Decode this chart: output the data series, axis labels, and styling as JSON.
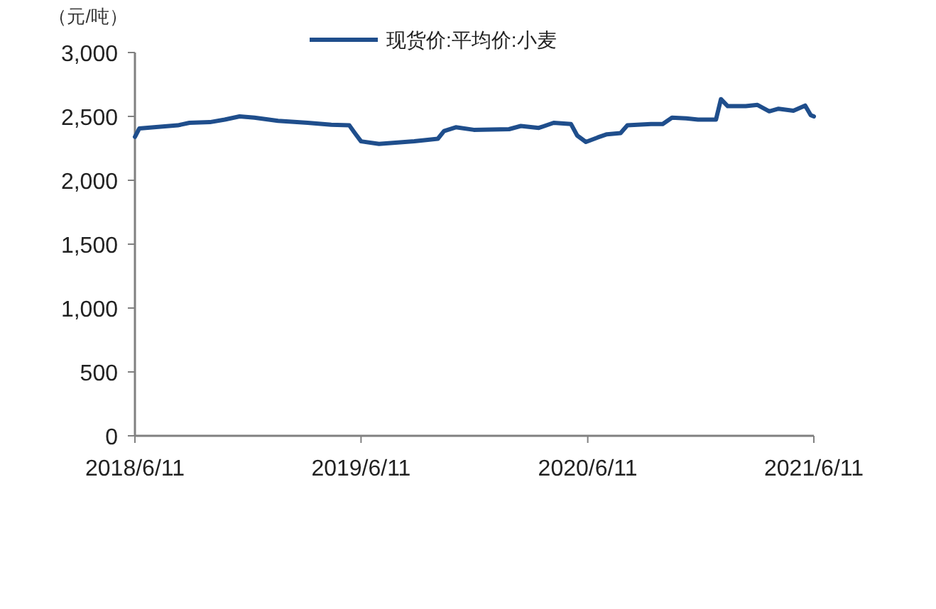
{
  "chart_data": {
    "type": "line",
    "ylabel": "（元/吨）",
    "legend": "top",
    "grid": false,
    "marker": "none",
    "line_style": "solid",
    "x": [
      "2018-06-11",
      "2018-06-18",
      "2018-07-12",
      "2018-08-19",
      "2018-09-07",
      "2018-10-10",
      "2018-11-03",
      "2018-11-27",
      "2018-12-21",
      "2019-01-28",
      "2019-03-17",
      "2019-04-24",
      "2019-05-23",
      "2019-06-01",
      "2019-06-11",
      "2019-07-10",
      "2019-09-05",
      "2019-10-13",
      "2019-10-23",
      "2019-11-11",
      "2019-12-10",
      "2020-02-05",
      "2020-02-24",
      "2020-03-24",
      "2020-04-17",
      "2020-05-15",
      "2020-05-25",
      "2020-06-08",
      "2020-06-27",
      "2020-07-12",
      "2020-08-03",
      "2020-08-14",
      "2020-09-21",
      "2020-10-10",
      "2020-10-25",
      "2020-11-17",
      "2020-12-06",
      "2021-01-04",
      "2021-01-12",
      "2021-01-23",
      "2021-02-21",
      "2021-03-12",
      "2021-03-31",
      "2021-04-15",
      "2021-05-09",
      "2021-05-28",
      "2021-06-06",
      "2021-06-11"
    ],
    "series": [
      {
        "name": "现货价:平均价:小麦",
        "color": "#1f4e8c",
        "values": [
          2340,
          2405,
          2415,
          2430,
          2450,
          2455,
          2475,
          2500,
          2490,
          2465,
          2450,
          2435,
          2430,
          2370,
          2305,
          2285,
          2305,
          2325,
          2385,
          2415,
          2395,
          2400,
          2425,
          2410,
          2450,
          2440,
          2350,
          2300,
          2335,
          2360,
          2370,
          2430,
          2440,
          2440,
          2490,
          2485,
          2475,
          2475,
          2635,
          2580,
          2580,
          2590,
          2540,
          2560,
          2545,
          2585,
          2510,
          2500
        ]
      }
    ],
    "xlim": [
      "2018-06-11",
      "2021-06-11"
    ],
    "xticks": [
      {
        "value": "2018-06-11",
        "label": "2018/6/11"
      },
      {
        "value": "2019-06-11",
        "label": "2019/6/11"
      },
      {
        "value": "2020-06-11",
        "label": "2020/6/11"
      },
      {
        "value": "2021-06-11",
        "label": "2021/6/11"
      }
    ],
    "ylim": [
      0,
      3000
    ],
    "yticks": [
      0,
      500,
      {
        "value": 1000,
        "label": "1,000"
      },
      {
        "value": 1500,
        "label": "1,500"
      },
      {
        "value": 2000,
        "label": "2,000"
      },
      {
        "value": 2500,
        "label": "2,500"
      },
      {
        "value": 3000,
        "label": "3,000"
      }
    ]
  }
}
